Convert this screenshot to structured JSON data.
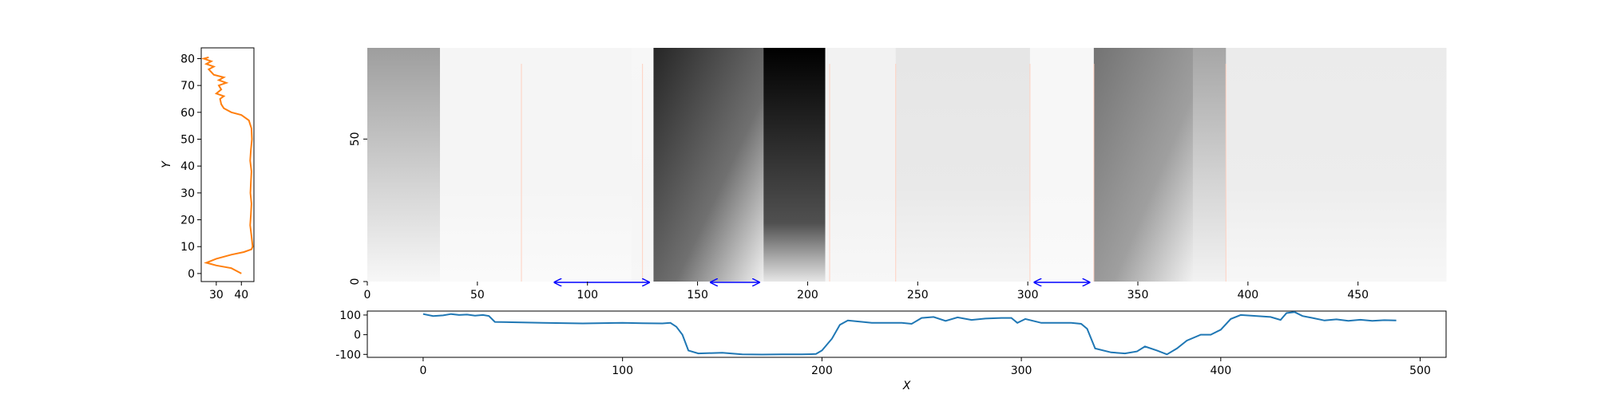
{
  "colors": {
    "profile_line": "#ff7f0e",
    "signal_line": "#1f77b4",
    "arrow": "#0000ff",
    "boundary_line": "#ffd0c0",
    "heatmap_dark": "#000000",
    "heatmap_light": "#ffffff"
  },
  "chart_data": [
    {
      "type": "line",
      "panel": "left-profile",
      "xlabel": "",
      "ylabel": "Y",
      "xlim": [
        24,
        45
      ],
      "ylim": [
        -3,
        84
      ],
      "xticks": [
        "30",
        "40"
      ],
      "yticks": [
        "0",
        "10",
        "20",
        "30",
        "40",
        "50",
        "60",
        "70",
        "80"
      ],
      "series": [
        {
          "points": [
            [
              40,
              0
            ],
            [
              36,
              2
            ],
            [
              30,
              3
            ],
            [
              26,
              4
            ],
            [
              30,
              5.5
            ],
            [
              36,
              7
            ],
            [
              41,
              8
            ],
            [
              44,
              9
            ],
            [
              44.5,
              10
            ],
            [
              44,
              14
            ],
            [
              43.5,
              18
            ],
            [
              43.8,
              22
            ],
            [
              44,
              26
            ],
            [
              43.6,
              30
            ],
            [
              43.8,
              34
            ],
            [
              44,
              38
            ],
            [
              43.5,
              42
            ],
            [
              43.8,
              46
            ],
            [
              44.2,
              50
            ],
            [
              44,
              54
            ],
            [
              43,
              57
            ],
            [
              40,
              59
            ],
            [
              36,
              60
            ],
            [
              33,
              61.5
            ],
            [
              32,
              63
            ],
            [
              31.5,
              65
            ],
            [
              33,
              66
            ],
            [
              30,
              67
            ],
            [
              32,
              68.5
            ],
            [
              31,
              70
            ],
            [
              34,
              71
            ],
            [
              31,
              72
            ],
            [
              33,
              73
            ],
            [
              29,
              74
            ],
            [
              28,
              75
            ],
            [
              27,
              76
            ],
            [
              29,
              77
            ],
            [
              26,
              78
            ],
            [
              28,
              79
            ],
            [
              25,
              80
            ],
            [
              27,
              80.5
            ]
          ]
        }
      ]
    },
    {
      "type": "heatmap",
      "panel": "main-heatmap",
      "xlabel": "",
      "ylabel": "",
      "xlim": [
        0,
        490
      ],
      "ylim": [
        0,
        82
      ],
      "xticks": [
        "0",
        "50",
        "100",
        "150",
        "200",
        "250",
        "300",
        "350",
        "400",
        "450"
      ],
      "yticks": [
        "0",
        "50"
      ],
      "bands": [
        {
          "x0": 0,
          "x1": 33,
          "top": 0.38,
          "bottom": 0.03,
          "shape": "fade"
        },
        {
          "x0": 33,
          "x1": 120,
          "top": 0.04,
          "bottom": 0.02,
          "shape": "flat"
        },
        {
          "x0": 120,
          "x1": 130,
          "top": 0.03,
          "bottom": 0.03,
          "shape": "flat"
        },
        {
          "x0": 130,
          "x1": 180,
          "top": 0.85,
          "bottom": 0.05,
          "shape": "diagonal"
        },
        {
          "x0": 180,
          "x1": 208,
          "top": 1.0,
          "bottom": 0.1,
          "shape": "dark"
        },
        {
          "x0": 208,
          "x1": 240,
          "top": 0.05,
          "bottom": 0.03,
          "shape": "flat"
        },
        {
          "x0": 240,
          "x1": 301,
          "top": 0.1,
          "bottom": 0.04,
          "shape": "flat"
        },
        {
          "x0": 301,
          "x1": 330,
          "top": 0.03,
          "bottom": 0.02,
          "shape": "flat"
        },
        {
          "x0": 330,
          "x1": 375,
          "top": 0.55,
          "bottom": 0.05,
          "shape": "diagonal"
        },
        {
          "x0": 375,
          "x1": 390,
          "top": 0.35,
          "bottom": 0.05,
          "shape": "fade"
        },
        {
          "x0": 390,
          "x1": 490,
          "top": 0.08,
          "bottom": 0.03,
          "shape": "flat"
        }
      ],
      "boundaries": [
        70,
        125,
        210,
        240,
        301,
        330,
        390
      ],
      "arrows": [
        {
          "x0": 85,
          "x1": 128
        },
        {
          "x0": 156,
          "x1": 178
        },
        {
          "x0": 303,
          "x1": 328
        }
      ]
    },
    {
      "type": "line",
      "panel": "bottom-signal",
      "xlabel": "X",
      "ylabel": "",
      "xlim": [
        -28,
        513
      ],
      "ylim": [
        -115,
        120
      ],
      "xticks": [
        "0",
        "100",
        "200",
        "300",
        "400",
        "500"
      ],
      "yticks": [
        "-100",
        "0",
        "100"
      ],
      "series": [
        {
          "points": [
            [
              0,
              105
            ],
            [
              5,
              95
            ],
            [
              10,
              98
            ],
            [
              14,
              105
            ],
            [
              18,
              100
            ],
            [
              22,
              102
            ],
            [
              26,
              97
            ],
            [
              30,
              100
            ],
            [
              33,
              95
            ],
            [
              36,
              65
            ],
            [
              60,
              60
            ],
            [
              80,
              57
            ],
            [
              100,
              60
            ],
            [
              110,
              58
            ],
            [
              120,
              57
            ],
            [
              124,
              60
            ],
            [
              127,
              40
            ],
            [
              130,
              0
            ],
            [
              133,
              -80
            ],
            [
              138,
              -95
            ],
            [
              150,
              -92
            ],
            [
              160,
              -100
            ],
            [
              170,
              -101
            ],
            [
              180,
              -100
            ],
            [
              190,
              -100
            ],
            [
              197,
              -98
            ],
            [
              200,
              -80
            ],
            [
              205,
              -20
            ],
            [
              209,
              50
            ],
            [
              213,
              72
            ],
            [
              225,
              60
            ],
            [
              240,
              60
            ],
            [
              245,
              55
            ],
            [
              250,
              85
            ],
            [
              256,
              90
            ],
            [
              262,
              70
            ],
            [
              268,
              88
            ],
            [
              275,
              75
            ],
            [
              282,
              82
            ],
            [
              290,
              85
            ],
            [
              295,
              85
            ],
            [
              298,
              60
            ],
            [
              302,
              80
            ],
            [
              310,
              60
            ],
            [
              325,
              60
            ],
            [
              330,
              55
            ],
            [
              333,
              30
            ],
            [
              337,
              -70
            ],
            [
              345,
              -90
            ],
            [
              352,
              -95
            ],
            [
              358,
              -85
            ],
            [
              362,
              -60
            ],
            [
              368,
              -80
            ],
            [
              373,
              -100
            ],
            [
              378,
              -70
            ],
            [
              383,
              -30
            ],
            [
              390,
              0
            ],
            [
              395,
              0
            ],
            [
              400,
              25
            ],
            [
              405,
              80
            ],
            [
              410,
              100
            ],
            [
              425,
              90
            ],
            [
              430,
              75
            ],
            [
              433,
              110
            ],
            [
              437,
              115
            ],
            [
              441,
              95
            ],
            [
              446,
              85
            ],
            [
              452,
              72
            ],
            [
              458,
              78
            ],
            [
              464,
              70
            ],
            [
              470,
              76
            ],
            [
              476,
              70
            ],
            [
              482,
              74
            ],
            [
              488,
              72
            ]
          ]
        }
      ]
    }
  ]
}
